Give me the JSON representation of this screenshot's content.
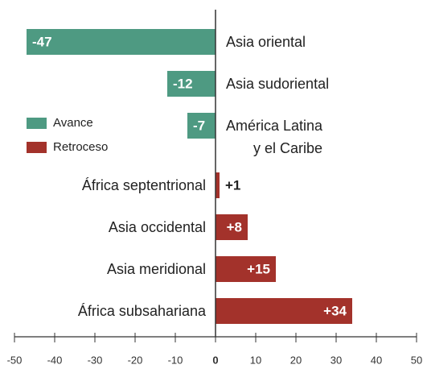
{
  "chart_data": {
    "type": "bar",
    "orientation": "horizontal",
    "categories": [
      "Asia oriental",
      "Asia sudoriental",
      "América Latina\ny el Caribe",
      "África septentrional",
      "Asia occidental",
      "Asia meridional",
      "África subsahariana"
    ],
    "values": [
      -47,
      -12,
      -7,
      1,
      8,
      15,
      34
    ],
    "value_labels": [
      "-47",
      "-12",
      "-7",
      "+1",
      "+8",
      "+15",
      "+34"
    ],
    "legend": [
      {
        "name": "Avance",
        "color": "#4e9a82"
      },
      {
        "name": "Retroceso",
        "color": "#a3322b"
      }
    ],
    "xlim": [
      -50,
      50
    ],
    "xticks": [
      -50,
      -40,
      -30,
      -20,
      -10,
      0,
      10,
      20,
      30,
      40,
      50
    ]
  }
}
